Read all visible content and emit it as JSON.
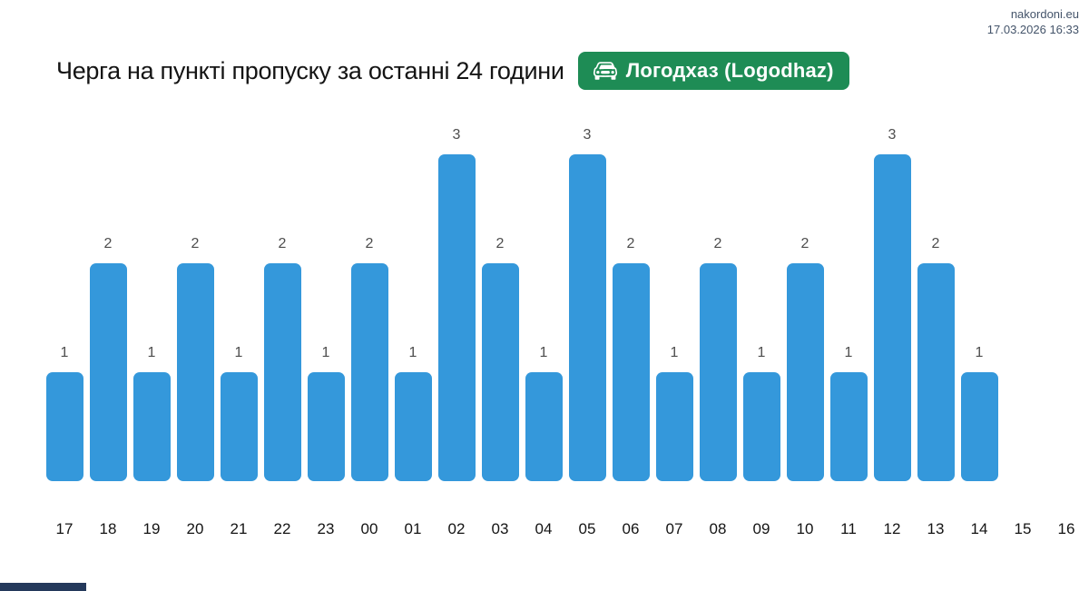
{
  "site": {
    "name": "nakordoni.eu",
    "timestamp": "17.03.2026 16:33"
  },
  "header": {
    "title": "Черга на пункті пропуску за останні 24 години",
    "badge": {
      "label": "Логодхаз (Logodhaz)",
      "icon": "car-front-icon",
      "background_color": "#1e8c55",
      "text_color": "#ffffff"
    }
  },
  "chart_data": {
    "type": "bar",
    "title": "Черга на пункті пропуску за останні 24 години",
    "xlabel": "",
    "ylabel": "",
    "ylim": [
      0,
      3
    ],
    "grid": false,
    "legend": "none",
    "bar_color": "#3498db",
    "value_label_color": "#4d4d4d",
    "categories": [
      "17",
      "18",
      "19",
      "20",
      "21",
      "22",
      "23",
      "00",
      "01",
      "02",
      "03",
      "04",
      "05",
      "06",
      "07",
      "08",
      "09",
      "10",
      "11",
      "12",
      "13",
      "14",
      "15",
      "16"
    ],
    "values": [
      1,
      2,
      1,
      2,
      1,
      2,
      1,
      2,
      1,
      3,
      2,
      1,
      3,
      2,
      1,
      2,
      1,
      2,
      1,
      3,
      2,
      1,
      null,
      null
    ]
  }
}
